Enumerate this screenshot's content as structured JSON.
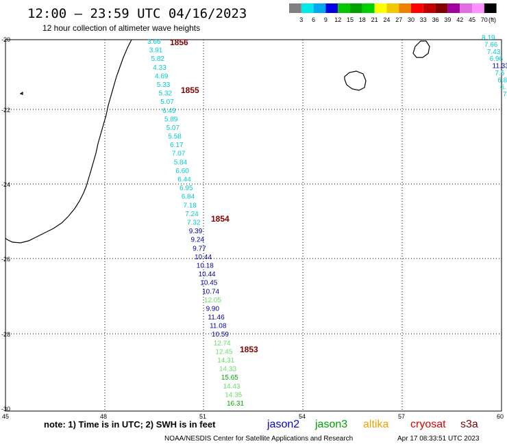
{
  "header": {
    "title": "12:00 – 23:59 UTC 04/16/2023",
    "subtitle": "12 hour collection of altimeter wave heights"
  },
  "legend": {
    "bins": [
      {
        "label": "3",
        "color": "#808080"
      },
      {
        "label": "6",
        "color": "#00e8e8"
      },
      {
        "label": "9",
        "color": "#00a8f0"
      },
      {
        "label": "12",
        "color": "#0000e0"
      },
      {
        "label": "15",
        "color": "#00c800"
      },
      {
        "label": "18",
        "color": "#00a000"
      },
      {
        "label": "21",
        "color": "#00d000"
      },
      {
        "label": "24",
        "color": "#ffff00"
      },
      {
        "label": "27",
        "color": "#f0c800"
      },
      {
        "label": "30",
        "color": "#f08000"
      },
      {
        "label": "33",
        "color": "#ff0000"
      },
      {
        "label": "36",
        "color": "#c00000"
      },
      {
        "label": "39",
        "color": "#800000"
      },
      {
        "label": "42",
        "color": "#a000a0"
      },
      {
        "label": "45",
        "color": "#e070e0"
      },
      {
        "label": "70",
        "color": "#ff90ff"
      },
      {
        "label": "",
        "color": "#000000"
      }
    ],
    "unit": "(ft)"
  },
  "axes": {
    "lat_labels": [
      "-20",
      "-22",
      "-24",
      "-26",
      "-28",
      "-30"
    ],
    "lon_labels": [
      "45",
      "48",
      "51",
      "54",
      "57",
      "60"
    ]
  },
  "colors": {
    "cyan": "#00cccc",
    "navy": "#0000aa",
    "lightgreen": "#66e066",
    "green": "#00a800",
    "time_label": "#800000"
  },
  "track_main": [
    {
      "v": "3.66",
      "c": "cyan"
    },
    {
      "v": "3.91",
      "c": "cyan"
    },
    {
      "v": "5.82",
      "c": "cyan"
    },
    {
      "v": "4.33",
      "c": "cyan"
    },
    {
      "v": "4.69",
      "c": "cyan"
    },
    {
      "v": "5.33",
      "c": "cyan"
    },
    {
      "v": "5.32",
      "c": "cyan"
    },
    {
      "v": "5.07",
      "c": "cyan"
    },
    {
      "v": "6.49",
      "c": "cyan"
    },
    {
      "v": "5.89",
      "c": "cyan"
    },
    {
      "v": "5.07",
      "c": "cyan"
    },
    {
      "v": "5.58",
      "c": "cyan"
    },
    {
      "v": "6.17",
      "c": "cyan"
    },
    {
      "v": "7.07",
      "c": "cyan"
    },
    {
      "v": "5.84",
      "c": "cyan"
    },
    {
      "v": "6.60",
      "c": "cyan"
    },
    {
      "v": "6.44",
      "c": "cyan"
    },
    {
      "v": "6.95",
      "c": "cyan"
    },
    {
      "v": "6.84",
      "c": "cyan"
    },
    {
      "v": "7.18",
      "c": "cyan"
    },
    {
      "v": "7.24",
      "c": "cyan"
    },
    {
      "v": "7.32",
      "c": "cyan"
    },
    {
      "v": "9.39",
      "c": "navy"
    },
    {
      "v": "9.24",
      "c": "navy"
    },
    {
      "v": "9.77",
      "c": "navy"
    },
    {
      "v": "10.44",
      "c": "navy"
    },
    {
      "v": "10.18",
      "c": "navy"
    },
    {
      "v": "10.44",
      "c": "navy"
    },
    {
      "v": "10.45",
      "c": "navy"
    },
    {
      "v": "10.74",
      "c": "navy"
    },
    {
      "v": "12.05",
      "c": "lightgreen"
    },
    {
      "v": "9.90",
      "c": "navy"
    },
    {
      "v": "11.46",
      "c": "navy"
    },
    {
      "v": "11.08",
      "c": "navy"
    },
    {
      "v": "10.59",
      "c": "navy"
    },
    {
      "v": "12.74",
      "c": "lightgreen"
    },
    {
      "v": "12.45",
      "c": "lightgreen"
    },
    {
      "v": "14.31",
      "c": "lightgreen"
    },
    {
      "v": "14.33",
      "c": "lightgreen"
    },
    {
      "v": "15.65",
      "c": "green"
    },
    {
      "v": "14.43",
      "c": "lightgreen"
    },
    {
      "v": "14.35",
      "c": "lightgreen"
    },
    {
      "v": "16.31",
      "c": "green"
    }
  ],
  "track_right": [
    {
      "v": "8.19",
      "c": "cyan"
    },
    {
      "v": "7.66",
      "c": "cyan"
    },
    {
      "v": "7.43",
      "c": "cyan"
    },
    {
      "v": "6.96",
      "c": "cyan"
    },
    {
      "v": "11.33",
      "c": "navy"
    },
    {
      "v": "7.5",
      "c": "cyan"
    },
    {
      "v": "6.8",
      "c": "cyan"
    },
    {
      "v": "6.",
      "c": "cyan"
    },
    {
      "v": "7",
      "c": "cyan"
    }
  ],
  "time_labels": [
    "1856",
    "1855",
    "1854",
    "1853"
  ],
  "footer": {
    "note": "note:  1) Time is in UTC;  2) SWH is in feet",
    "satellites": [
      {
        "name": "jason2",
        "color": "#0000e0"
      },
      {
        "name": "jason3",
        "color": "#00a000"
      },
      {
        "name": "altika",
        "color": "#f0a000"
      },
      {
        "name": "cryosat",
        "color": "#e00000"
      },
      {
        "name": "s3a",
        "color": "#800000"
      }
    ],
    "credit": "NOAA/NESDIS Center for Satellite Applications and Research",
    "timestamp": "Apr 17 08:33:51 UTC 2023"
  }
}
